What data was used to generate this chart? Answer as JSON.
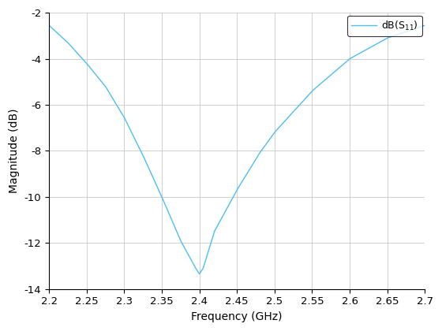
{
  "xlabel": "Frequency (GHz)",
  "ylabel": "Magnitude (dB)",
  "legend_label": "dB(S$_{11}$)",
  "xlim": [
    2.2,
    2.7
  ],
  "ylim": [
    -14,
    -2
  ],
  "xticks": [
    2.2,
    2.25,
    2.3,
    2.35,
    2.4,
    2.45,
    2.5,
    2.55,
    2.6,
    2.65,
    2.7
  ],
  "yticks": [
    -14,
    -12,
    -10,
    -8,
    -6,
    -4,
    -2
  ],
  "line_color": "#4DBEEE",
  "line_width": 1.0,
  "f_start": 2.2,
  "f_end": 2.7,
  "known_f": [
    2.2,
    2.225,
    2.25,
    2.275,
    2.3,
    2.325,
    2.35,
    2.375,
    2.395,
    2.4,
    2.405,
    2.42,
    2.45,
    2.48,
    2.5,
    2.55,
    2.6,
    2.65,
    2.7
  ],
  "known_mag": [
    -2.55,
    -3.3,
    -4.2,
    -5.2,
    -6.55,
    -8.2,
    -10.0,
    -11.9,
    -13.1,
    -13.35,
    -13.1,
    -11.5,
    -9.7,
    -8.1,
    -7.2,
    -5.4,
    -4.0,
    -3.1,
    -2.55
  ],
  "background_color": "#ffffff",
  "grid_color": "#c8c8c8",
  "figsize": [
    5.6,
    4.2
  ],
  "dpi": 100
}
